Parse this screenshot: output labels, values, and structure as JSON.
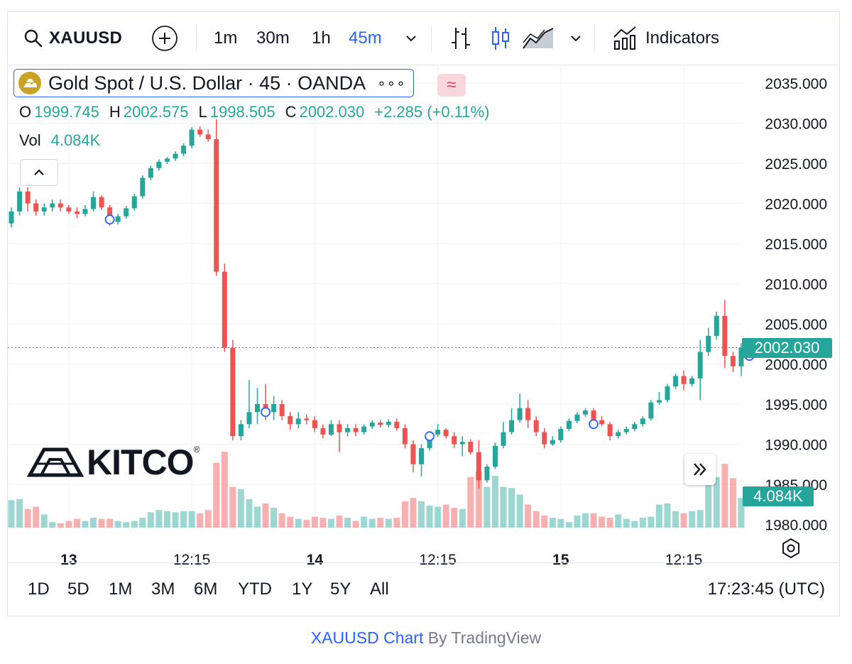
{
  "toolbar": {
    "symbol": "XAUUSD",
    "intervals": [
      {
        "label": "1m",
        "active": false
      },
      {
        "label": "30m",
        "active": false
      },
      {
        "label": "1h",
        "active": false
      },
      {
        "label": "45m",
        "active": true
      }
    ],
    "indicators_label": "Indicators",
    "icons": [
      "search-icon",
      "add-symbol-icon",
      "chevron-down-icon",
      "bar-style-icon",
      "candle-style-icon",
      "area-style-icon",
      "chevron-down-icon",
      "indicators-icon"
    ]
  },
  "legend": {
    "title": "Gold Spot / U.S. Dollar · 45 · OANDA",
    "more": "∘∘∘",
    "wave": "≈",
    "o_key": "O",
    "o_val": "1999.745",
    "h_key": "H",
    "h_val": "2002.575",
    "l_key": "L",
    "l_val": "1998.505",
    "c_key": "C",
    "c_val": "2002.030",
    "change": "+2.285 (+0.11%)",
    "vol_key": "Vol",
    "vol_val": "4.084K"
  },
  "chart_data": {
    "type": "candlestick",
    "y_ticks": [
      "2035.000",
      "2030.000",
      "2025.000",
      "2020.000",
      "2015.000",
      "2010.000",
      "2005.000",
      "2000.000",
      "1995.000",
      "1990.000",
      "1985.000",
      "1980.000"
    ],
    "x_ticks": [
      {
        "label": "13",
        "bold": true,
        "idx": 7
      },
      {
        "label": "12:15",
        "bold": false,
        "idx": 22
      },
      {
        "label": "14",
        "bold": true,
        "idx": 37
      },
      {
        "label": "12:15",
        "bold": false,
        "idx": 52
      },
      {
        "label": "15",
        "bold": true,
        "idx": 67
      },
      {
        "label": "12:15",
        "bold": false,
        "idx": 82
      }
    ],
    "ylim": [
      1980,
      2037
    ],
    "last_price": "2002.030",
    "last_price_value": 2002.03,
    "last_volume": "4.084K",
    "candles": [
      [
        2017.5,
        2019.5,
        2017,
        2019
      ],
      [
        2019,
        2022,
        2018.5,
        2021.5
      ],
      [
        2021.5,
        2022,
        2019,
        2020
      ],
      [
        2020,
        2020.5,
        2018.5,
        2019
      ],
      [
        2019,
        2020,
        2018.5,
        2019.5
      ],
      [
        2019.5,
        2020.5,
        2019,
        2020
      ],
      [
        2020,
        2020.5,
        2019,
        2019.5
      ],
      [
        2019.5,
        2019.8,
        2018.7,
        2019
      ],
      [
        2019,
        2019.5,
        2018.2,
        2018.7
      ],
      [
        2018.7,
        2019.8,
        2018.4,
        2019.3
      ],
      [
        2019.3,
        2021.5,
        2019,
        2020.8
      ],
      [
        2020.8,
        2021,
        2019.2,
        2019.5
      ],
      [
        2019.5,
        2019.8,
        2017.2,
        2017.7
      ],
      [
        2017.7,
        2018.7,
        2017.4,
        2018.4
      ],
      [
        2018.4,
        2019.7,
        2018.1,
        2019.4
      ],
      [
        2019.4,
        2021.2,
        2019.1,
        2020.9
      ],
      [
        2020.9,
        2023.5,
        2020.6,
        2023.2
      ],
      [
        2023.2,
        2024.7,
        2022.9,
        2024.4
      ],
      [
        2024.4,
        2025.5,
        2024.1,
        2025.2
      ],
      [
        2025.2,
        2025.8,
        2024.9,
        2025.6
      ],
      [
        2025.6,
        2026.5,
        2025.3,
        2026.2
      ],
      [
        2026.2,
        2027.5,
        2025.9,
        2027.2
      ],
      [
        2027.2,
        2029.5,
        2026.9,
        2029.2
      ],
      [
        2029.2,
        2029.6,
        2028.3,
        2028.6
      ],
      [
        2028.6,
        2029.2,
        2027.7,
        2028
      ],
      [
        2028,
        2030.5,
        2011,
        2011.5
      ],
      [
        2011.5,
        2012.5,
        2001.5,
        2002
      ],
      [
        2002,
        2003,
        1990.5,
        1991
      ],
      [
        1991,
        1993,
        1990.5,
        1992.5
      ],
      [
        1992.5,
        1998,
        1992,
        1994
      ],
      [
        1994,
        1997,
        1992.5,
        1995
      ],
      [
        1995,
        1997.5,
        1993,
        1994
      ],
      [
        1994,
        1996,
        1993,
        1995
      ],
      [
        1995,
        1995.5,
        1993,
        1993.5
      ],
      [
        1993.5,
        1994,
        1991.8,
        1992.5
      ],
      [
        1992.5,
        1994,
        1992,
        1993.2
      ],
      [
        1993.2,
        1993.7,
        1992.5,
        1993
      ],
      [
        1993,
        1993.5,
        1991.5,
        1992
      ],
      [
        1992,
        1992.5,
        1990.7,
        1991.2
      ],
      [
        1991.2,
        1993,
        1991,
        1992.5
      ],
      [
        1992.5,
        1993,
        1989,
        1991.5
      ],
      [
        1991.5,
        1992.5,
        1991,
        1992
      ],
      [
        1992,
        1992.5,
        1991,
        1991.5
      ],
      [
        1991.5,
        1992.5,
        1991.2,
        1992.2
      ],
      [
        1992.2,
        1993,
        1991.9,
        1992.7
      ],
      [
        1992.7,
        1993,
        1992.1,
        1992.4
      ],
      [
        1992.4,
        1993.1,
        1992.1,
        1992.8
      ],
      [
        1992.8,
        1993.2,
        1991.7,
        1992
      ],
      [
        1992,
        1992.5,
        1989.5,
        1990
      ],
      [
        1990,
        1990.5,
        1986.5,
        1987.5
      ],
      [
        1987.5,
        1990,
        1986,
        1989.5
      ],
      [
        1989.5,
        1991.5,
        1989.2,
        1991.2
      ],
      [
        1991.2,
        1992.5,
        1990.9,
        1991.8
      ],
      [
        1991.8,
        1992,
        1990.7,
        1991
      ],
      [
        1991,
        1991.5,
        1989.5,
        1990
      ],
      [
        1990,
        1991,
        1988.5,
        1990.3
      ],
      [
        1990.3,
        1990.6,
        1988.7,
        1989
      ],
      [
        1989,
        1990.5,
        1984.5,
        1985.5
      ],
      [
        1985.5,
        1987.5,
        1985.2,
        1987.2
      ],
      [
        1987.2,
        1990.2,
        1986.9,
        1989.8
      ],
      [
        1989.8,
        1992.8,
        1989.5,
        1991.5
      ],
      [
        1991.5,
        1994.5,
        1991.2,
        1993
      ],
      [
        1993,
        1996.3,
        1992.7,
        1994.5
      ],
      [
        1994.5,
        1995.5,
        1992,
        1993
      ],
      [
        1993,
        1993.5,
        1991,
        1991.5
      ],
      [
        1991.5,
        1992,
        1989.5,
        1990
      ],
      [
        1990,
        1991,
        1989.8,
        1990.5
      ],
      [
        1990.5,
        1992.2,
        1990.2,
        1991.9
      ],
      [
        1991.9,
        1993.2,
        1991.6,
        1992.9
      ],
      [
        1992.9,
        1994,
        1992.6,
        1993.7
      ],
      [
        1993.7,
        1994.5,
        1993.4,
        1994.2
      ],
      [
        1994.2,
        1994.5,
        1992.7,
        1993
      ],
      [
        1993,
        1993.5,
        1992.2,
        1992.5
      ],
      [
        1992.5,
        1992.8,
        1990.5,
        1991
      ],
      [
        1991,
        1991.8,
        1990.7,
        1991.5
      ],
      [
        1991.5,
        1992.2,
        1991.2,
        1991.9
      ],
      [
        1991.9,
        1992.8,
        1991.6,
        1992.5
      ],
      [
        1992.5,
        1993.5,
        1992.2,
        1993.2
      ],
      [
        1993.2,
        1995.5,
        1992.9,
        1995.2
      ],
      [
        1995.2,
        1996.5,
        1994.9,
        1995.5
      ],
      [
        1995.5,
        1997.5,
        1995.2,
        1997.2
      ],
      [
        1997.2,
        1998.8,
        1996.9,
        1998.5
      ],
      [
        1998.5,
        1999.2,
        1996.7,
        1997.5
      ],
      [
        1997.5,
        1998.5,
        1997.2,
        1998.2
      ],
      [
        1998.2,
        2003,
        1995.5,
        2001.5
      ],
      [
        2001.5,
        2004.5,
        2001,
        2003.5
      ],
      [
        2003.5,
        2006.5,
        2003,
        2006
      ],
      [
        2006,
        2008,
        1999.5,
        2001
      ],
      [
        2001,
        2001.5,
        1999,
        1999.7
      ],
      [
        1999.7,
        2002.6,
        1998.5,
        2002
      ]
    ],
    "volume": [
      1.25,
      1.3,
      0.85,
      0.95,
      0.6,
      0.25,
      0.2,
      0.3,
      0.4,
      0.3,
      0.45,
      0.4,
      0.4,
      0.3,
      0.25,
      0.3,
      0.45,
      0.7,
      0.8,
      0.75,
      0.7,
      0.75,
      0.75,
      0.65,
      0.8,
      2.95,
      3.45,
      1.85,
      1.75,
      1.3,
      0.95,
      1.1,
      0.9,
      0.65,
      0.5,
      0.4,
      0.35,
      0.5,
      0.45,
      0.4,
      0.55,
      0.45,
      0.3,
      0.5,
      0.4,
      0.45,
      0.4,
      0.45,
      1.2,
      1.35,
      1.2,
      1.0,
      0.95,
      1.05,
      0.9,
      0.85,
      2.3,
      2.55,
      1.85,
      2.35,
      1.85,
      1.8,
      1.5,
      1.05,
      0.75,
      0.55,
      0.45,
      0.4,
      0.25,
      0.55,
      0.65,
      0.65,
      0.5,
      0.45,
      0.6,
      0.4,
      0.3,
      0.45,
      0.5,
      1.05,
      1.1,
      0.75,
      0.65,
      0.75,
      0.8,
      2.3,
      2.3,
      2.9,
      2.25,
      1.35
    ]
  },
  "bottom": {
    "ranges": [
      "1D",
      "5D",
      "1M",
      "3M",
      "6M",
      "YTD",
      "1Y",
      "5Y",
      "All"
    ],
    "time": "17:23:45 (UTC)"
  },
  "brand": {
    "kitco": "KITCO",
    "reg": "®"
  },
  "credit": {
    "link": "XAUUSD Chart",
    "by": " By TradingView"
  },
  "colors": {
    "up": "#26a69a",
    "down": "#ef5350",
    "accent": "#2962ff",
    "grid": "#f0f3fa"
  }
}
